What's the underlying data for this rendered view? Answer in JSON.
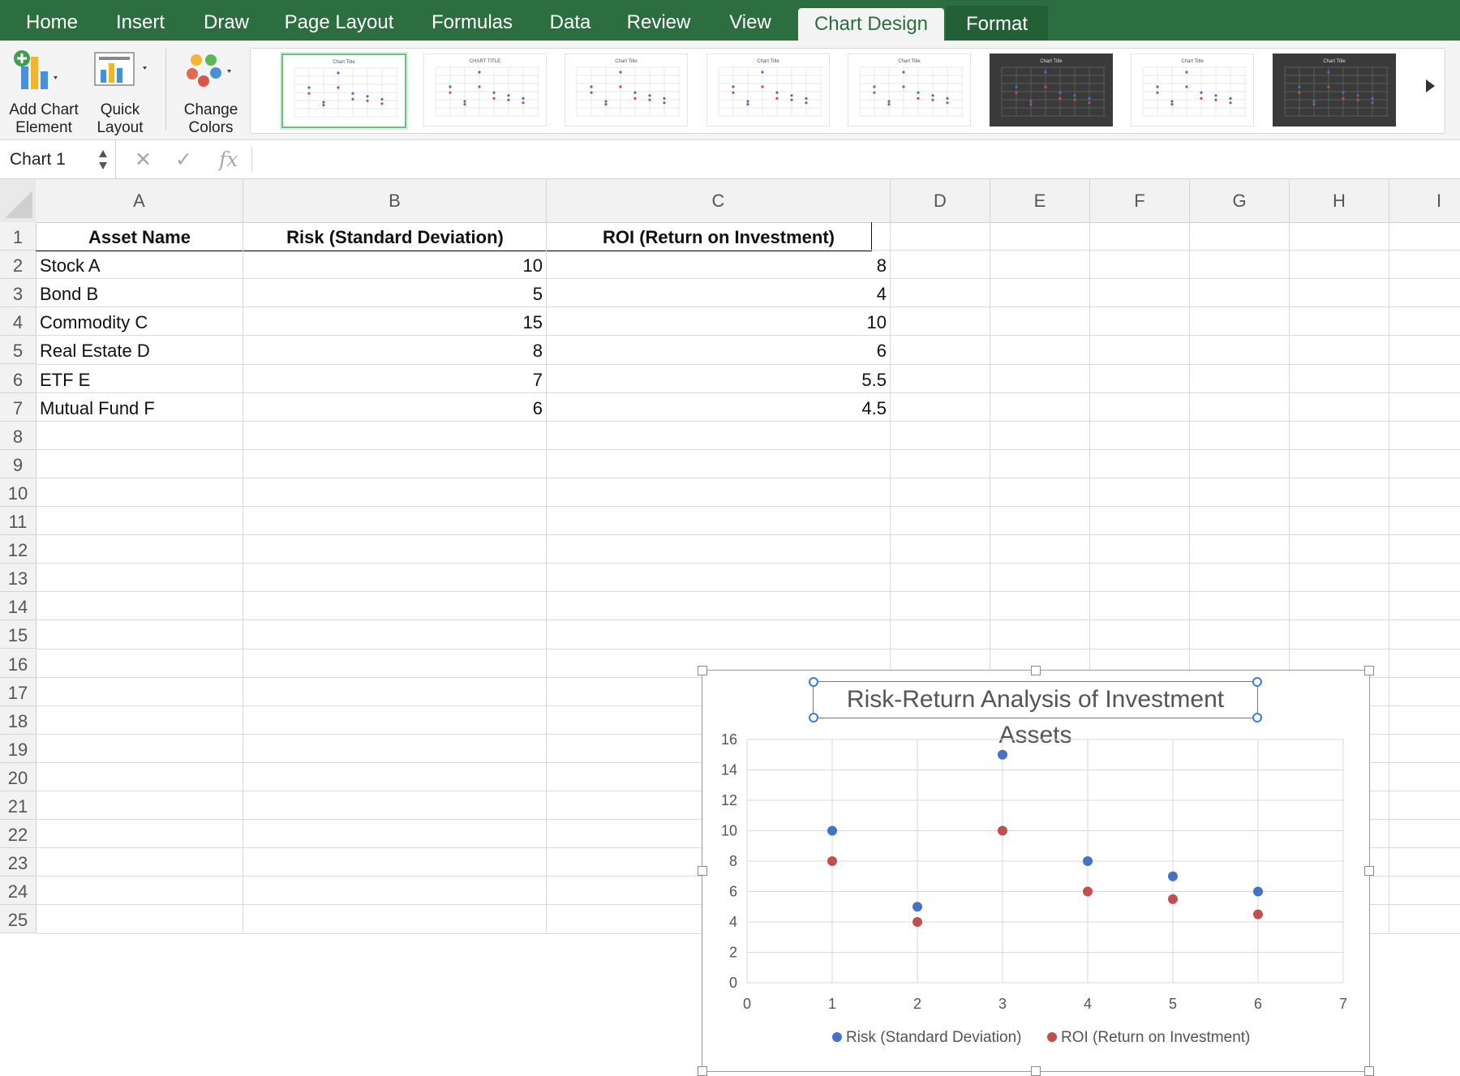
{
  "ribbon_tabs": [
    "Home",
    "Insert",
    "Draw",
    "Page Layout",
    "Formulas",
    "Data",
    "Review",
    "View",
    "Chart Design",
    "Format"
  ],
  "active_tab": "Chart Design",
  "ribbon": {
    "add_chart_element": [
      "Add Chart",
      "Element"
    ],
    "quick_layout": [
      "Quick",
      "Layout"
    ],
    "change_colors": [
      "Change",
      "Colors"
    ],
    "chart_styles": {
      "count": 8,
      "selected_index": 0,
      "dark_indices": [
        5,
        7
      ],
      "thumbnail_titles": [
        "Chart Title",
        "CHART TITLE",
        "Chart Title",
        "Chart Title",
        "Chart Title",
        "Chart Title",
        "Chart Title",
        "Chart Title"
      ]
    }
  },
  "formula_bar": {
    "name_box": "Chart 1",
    "cancel_icon": "x-icon",
    "enter_icon": "checkmark-icon",
    "function_icon": "fx-icon",
    "formula": ""
  },
  "sheet": {
    "columns": [
      "A",
      "B",
      "C",
      "D",
      "E",
      "F",
      "G",
      "H",
      "I"
    ],
    "rows": [
      "1",
      "2",
      "3",
      "4",
      "5",
      "6",
      "7",
      "8",
      "9",
      "10",
      "11",
      "12",
      "13",
      "14",
      "15",
      "16",
      "17",
      "18",
      "19",
      "20",
      "21",
      "22",
      "23",
      "24",
      "25"
    ],
    "headers": [
      "Asset Name",
      "Risk (Standard Deviation)",
      "ROI (Return on Investment)"
    ],
    "data": [
      [
        "Stock A",
        "10",
        "8"
      ],
      [
        "Bond B",
        "5",
        "4"
      ],
      [
        "Commodity C",
        "15",
        "10"
      ],
      [
        "Real Estate D",
        "8",
        "6"
      ],
      [
        "ETF E",
        "7",
        "5.5"
      ],
      [
        "Mutual Fund F",
        "6",
        "4.5"
      ]
    ]
  },
  "chart_data": {
    "type": "scatter",
    "title": "Risk-Return Analysis of Investment Assets",
    "xlim": [
      0,
      7
    ],
    "ylim": [
      0,
      16
    ],
    "x_ticks": [
      "0",
      "1",
      "2",
      "3",
      "4",
      "5",
      "6",
      "7"
    ],
    "y_ticks": [
      "0",
      "2",
      "4",
      "6",
      "8",
      "10",
      "12",
      "14",
      "16"
    ],
    "grid": true,
    "legend": "bottom",
    "series": [
      {
        "name": "Risk (Standard Deviation)",
        "color": "#4472c4",
        "x": [
          1,
          2,
          3,
          4,
          5,
          6
        ],
        "y": [
          10,
          5,
          15,
          8,
          7,
          6
        ]
      },
      {
        "name": "ROI (Return on Investment)",
        "color": "#c0504d",
        "x": [
          1,
          2,
          3,
          4,
          5,
          6
        ],
        "y": [
          8,
          4,
          10,
          6,
          5.5,
          4.5
        ]
      }
    ]
  }
}
